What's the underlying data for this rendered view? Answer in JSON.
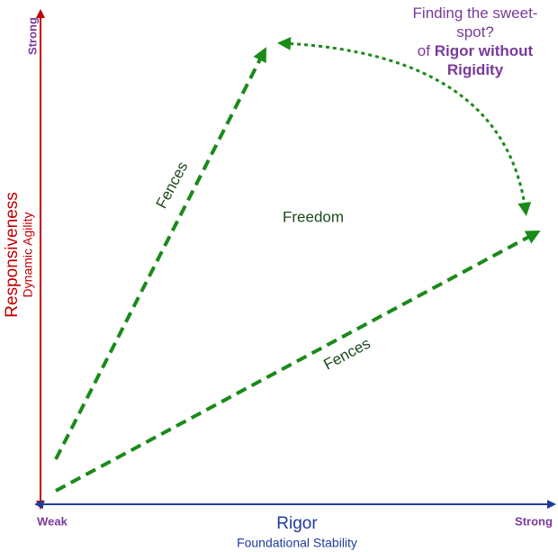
{
  "y_axis": {
    "end_label": "Strong",
    "title": "Responsiveness",
    "subtitle": "Dynamic Agility"
  },
  "x_axis": {
    "start_label": "Weak",
    "end_label": "Strong",
    "title": "Rigor",
    "subtitle": "Foundational Stability"
  },
  "region": {
    "upper_fence": "Fences",
    "lower_fence": "Fences",
    "center": "Freedom"
  },
  "annotation": {
    "question": "Finding the sweet-spot?",
    "prefix": "of",
    "emphasis": "Rigor without Rigidity"
  }
}
